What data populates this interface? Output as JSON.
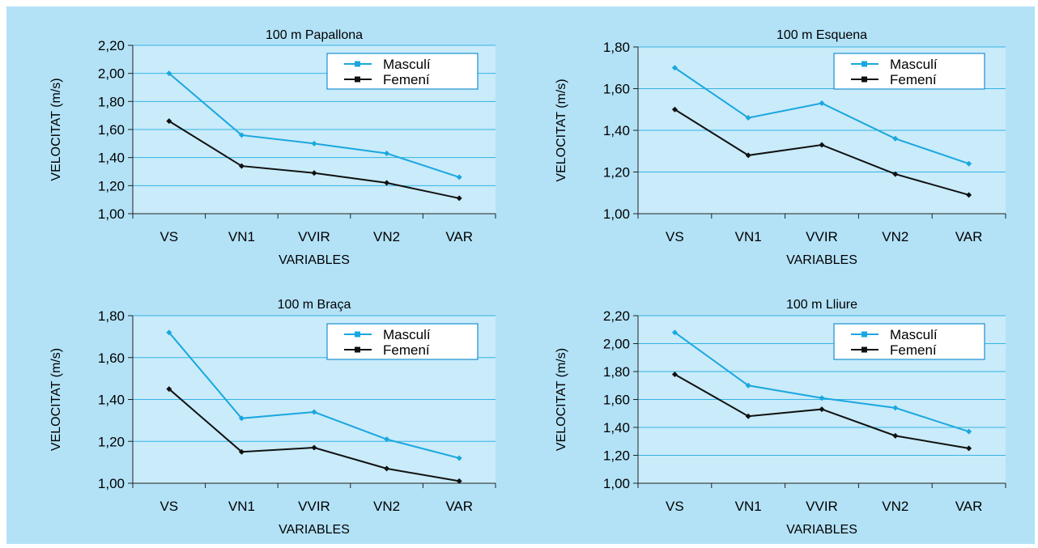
{
  "colors": {
    "panel_bg": "#b3e2f7",
    "plot_bg": "#c9ebfa",
    "grid": "#35b3e4",
    "masculi": "#1aa7df",
    "femeni": "#111111"
  },
  "chart_data": [
    {
      "type": "line",
      "title": "100 m Papallona",
      "xlabel": "VARIABLES",
      "ylabel": "VELOCITAT (m/s)",
      "categories": [
        "VS",
        "VN1",
        "VVIR",
        "VN2",
        "VAR"
      ],
      "ylim": [
        1.0,
        2.2
      ],
      "yticks": [
        "1,00",
        "1,20",
        "1,40",
        "1,60",
        "1,80",
        "2,00",
        "2,20"
      ],
      "grid": true,
      "legend_position": "top-right",
      "series": [
        {
          "name": "Masculí",
          "values": [
            2.0,
            1.56,
            1.5,
            1.43,
            1.26
          ]
        },
        {
          "name": "Femení",
          "values": [
            1.66,
            1.34,
            1.29,
            1.22,
            1.11
          ]
        }
      ]
    },
    {
      "type": "line",
      "title": "100 m Esquena",
      "xlabel": "VARIABLES",
      "ylabel": "VELOCITAT (m/s)",
      "categories": [
        "VS",
        "VN1",
        "VVIR",
        "VN2",
        "VAR"
      ],
      "ylim": [
        1.0,
        1.8
      ],
      "yticks": [
        "1,00",
        "1,20",
        "1,40",
        "1,60",
        "1,80"
      ],
      "grid": true,
      "legend_position": "top-right",
      "series": [
        {
          "name": "Masculí",
          "values": [
            1.7,
            1.46,
            1.53,
            1.36,
            1.24
          ]
        },
        {
          "name": "Femení",
          "values": [
            1.5,
            1.28,
            1.33,
            1.19,
            1.09
          ]
        }
      ]
    },
    {
      "type": "line",
      "title": "100 m Braça",
      "xlabel": "VARIABLES",
      "ylabel": "VELOCITAT (m/s)",
      "categories": [
        "VS",
        "VN1",
        "VVIR",
        "VN2",
        "VAR"
      ],
      "ylim": [
        1.0,
        1.8
      ],
      "yticks": [
        "1,00",
        "1,20",
        "1,40",
        "1,60",
        "1,80"
      ],
      "grid": true,
      "legend_position": "top-right",
      "series": [
        {
          "name": "Masculí",
          "values": [
            1.72,
            1.31,
            1.34,
            1.21,
            1.12
          ]
        },
        {
          "name": "Femení",
          "values": [
            1.45,
            1.15,
            1.17,
            1.07,
            1.01
          ]
        }
      ]
    },
    {
      "type": "line",
      "title": "100 m Lliure",
      "xlabel": "VARIABLES",
      "ylabel": "VELOCITAT (m/s)",
      "categories": [
        "VS",
        "VN1",
        "VVIR",
        "VN2",
        "VAR"
      ],
      "ylim": [
        1.0,
        2.2
      ],
      "yticks": [
        "1,00",
        "1,20",
        "1,40",
        "1,60",
        "1,80",
        "2,00",
        "2,20"
      ],
      "grid": true,
      "legend_position": "top-right",
      "series": [
        {
          "name": "Masculí",
          "values": [
            2.08,
            1.7,
            1.61,
            1.54,
            1.37
          ]
        },
        {
          "name": "Femení",
          "values": [
            1.78,
            1.48,
            1.53,
            1.34,
            1.25
          ]
        }
      ]
    }
  ]
}
